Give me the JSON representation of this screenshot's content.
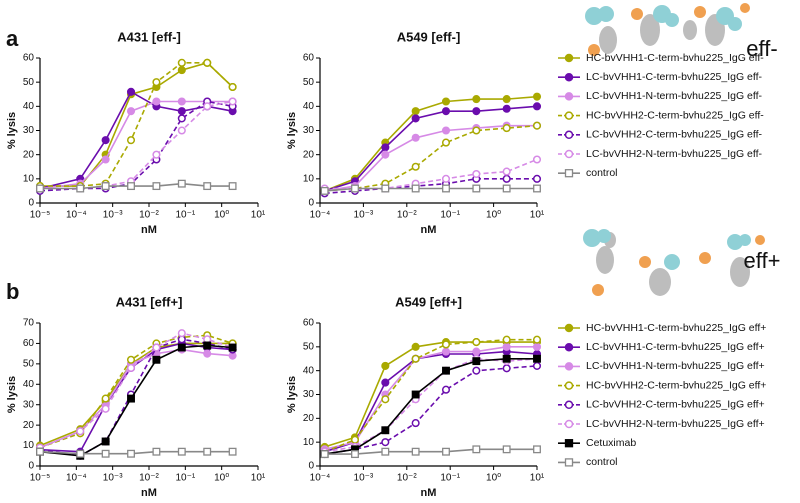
{
  "chart_data": [
    {
      "type": "line",
      "panel_label": "a",
      "title": "A431 [eff-]",
      "xlabel": "nM",
      "ylabel": "% lysis",
      "xscale": "log",
      "x": [
        1e-05,
        0.000128,
        0.00064,
        0.0032,
        0.016,
        0.08,
        0.4,
        2
      ],
      "xlim": [
        1e-05,
        10
      ],
      "xticks": [
        {
          "value": 1e-05,
          "label": "10⁻⁵"
        },
        {
          "value": 0.0001,
          "label": "10⁻⁴"
        },
        {
          "value": 0.001,
          "label": "10⁻³"
        },
        {
          "value": 0.01,
          "label": "10⁻²"
        },
        {
          "value": 0.1,
          "label": "10⁻¹"
        },
        {
          "value": 1,
          "label": "10⁰"
        },
        {
          "value": 10,
          "label": "10¹"
        }
      ],
      "ylim": [
        0,
        60
      ],
      "yticks": [
        0,
        10,
        20,
        30,
        40,
        50,
        60
      ],
      "series": [
        {
          "color": "#a9a900",
          "marker": "circle",
          "filled": true,
          "dashed": false,
          "values": [
            7,
            7,
            20,
            45,
            48,
            55,
            58,
            48
          ]
        },
        {
          "color": "#6a0dad",
          "marker": "circle",
          "filled": true,
          "dashed": false,
          "values": [
            6,
            10,
            26,
            46,
            40,
            38,
            40,
            38
          ]
        },
        {
          "color": "#d68ae6",
          "marker": "circle",
          "filled": true,
          "dashed": false,
          "values": [
            6,
            8,
            18,
            38,
            42,
            42,
            42,
            42
          ]
        },
        {
          "color": "#a9a900",
          "marker": "circle",
          "filled": false,
          "dashed": true,
          "values": [
            7,
            7,
            8,
            26,
            50,
            58,
            58,
            48
          ]
        },
        {
          "color": "#6a0dad",
          "marker": "circle",
          "filled": false,
          "dashed": true,
          "values": [
            5,
            6,
            6,
            8,
            18,
            35,
            42,
            40
          ]
        },
        {
          "color": "#d68ae6",
          "marker": "circle",
          "filled": false,
          "dashed": true,
          "values": [
            6,
            6,
            7,
            9,
            20,
            30,
            40,
            42
          ]
        },
        {
          "color": "#888888",
          "marker": "square",
          "filled": false,
          "dashed": false,
          "values": [
            6,
            6,
            7,
            7,
            7,
            8,
            7,
            7
          ]
        }
      ]
    },
    {
      "type": "line",
      "legend_title": "eff-",
      "title": "A549 [eff-]",
      "xlabel": "nM",
      "ylabel": "% lysis",
      "xscale": "log",
      "x": [
        0.000128,
        0.00064,
        0.0032,
        0.016,
        0.08,
        0.4,
        2,
        10
      ],
      "xlim": [
        0.0001,
        10
      ],
      "xticks": [
        {
          "value": 0.0001,
          "label": "10⁻⁴"
        },
        {
          "value": 0.001,
          "label": "10⁻³"
        },
        {
          "value": 0.01,
          "label": "10⁻²"
        },
        {
          "value": 0.1,
          "label": "10⁻¹"
        },
        {
          "value": 1,
          "label": "10⁰"
        },
        {
          "value": 10,
          "label": "10¹"
        }
      ],
      "ylim": [
        0,
        60
      ],
      "yticks": [
        0,
        10,
        20,
        30,
        40,
        50,
        60
      ],
      "series": [
        {
          "name": "HC-bvVHH1-C-term-bvhu225_IgG eff-",
          "color": "#a9a900",
          "marker": "circle",
          "filled": true,
          "dashed": false,
          "values": [
            5,
            10,
            25,
            38,
            42,
            43,
            43,
            44
          ]
        },
        {
          "name": "LC-bvVHH1-C-term-bvhu225_IgG eff-",
          "color": "#6a0dad",
          "marker": "circle",
          "filled": true,
          "dashed": false,
          "values": [
            5,
            9,
            23,
            35,
            38,
            38,
            39,
            40
          ]
        },
        {
          "name": "LC-bvVHH1-N-term-bvhu225_IgG eff-",
          "color": "#d68ae6",
          "marker": "circle",
          "filled": true,
          "dashed": false,
          "values": [
            5,
            7,
            20,
            27,
            30,
            31,
            32,
            32
          ]
        },
        {
          "name": "HC-bvVHH2-C-term-bvhu225_IgG eff-",
          "color": "#a9a900",
          "marker": "circle",
          "filled": false,
          "dashed": true,
          "values": [
            5,
            6,
            8,
            15,
            25,
            30,
            31,
            32
          ]
        },
        {
          "name": "LC-bvVHH2-C-term-bvhu225_IgG eff-",
          "color": "#6a0dad",
          "marker": "circle",
          "filled": false,
          "dashed": true,
          "values": [
            4,
            5,
            6,
            7,
            8,
            10,
            10,
            10
          ]
        },
        {
          "name": "LC-bvVHH2-N-term-bvhu225_IgG eff-",
          "color": "#d68ae6",
          "marker": "circle",
          "filled": false,
          "dashed": true,
          "values": [
            6,
            6,
            6,
            8,
            10,
            12,
            13,
            18
          ]
        },
        {
          "name": "control",
          "color": "#888888",
          "marker": "square",
          "filled": false,
          "dashed": false,
          "values": [
            5,
            6,
            6,
            6,
            6,
            6,
            6,
            6
          ]
        }
      ]
    },
    {
      "type": "line",
      "panel_label": "b",
      "title": "A431 [eff+]",
      "xlabel": "nM",
      "ylabel": "% lysis",
      "xscale": "log",
      "x": [
        1e-05,
        0.000128,
        0.00064,
        0.0032,
        0.016,
        0.08,
        0.4,
        2
      ],
      "xlim": [
        1e-05,
        10
      ],
      "xticks": [
        {
          "value": 1e-05,
          "label": "10⁻⁵"
        },
        {
          "value": 0.0001,
          "label": "10⁻⁴"
        },
        {
          "value": 0.001,
          "label": "10⁻³"
        },
        {
          "value": 0.01,
          "label": "10⁻²"
        },
        {
          "value": 0.1,
          "label": "10⁻¹"
        },
        {
          "value": 1,
          "label": "10⁰"
        },
        {
          "value": 10,
          "label": "10¹"
        }
      ],
      "ylim": [
        0,
        70
      ],
      "yticks": [
        0,
        10,
        20,
        30,
        40,
        50,
        60,
        70
      ],
      "series": [
        {
          "color": "#a9a900",
          "marker": "circle",
          "filled": true,
          "dashed": false,
          "values": [
            10,
            18,
            32,
            50,
            58,
            60,
            60,
            60
          ]
        },
        {
          "color": "#6a0dad",
          "marker": "circle",
          "filled": true,
          "dashed": false,
          "values": [
            8,
            7,
            30,
            48,
            57,
            60,
            58,
            57
          ]
        },
        {
          "color": "#d68ae6",
          "marker": "circle",
          "filled": true,
          "dashed": false,
          "values": [
            9,
            17,
            30,
            50,
            55,
            57,
            55,
            54
          ]
        },
        {
          "color": "#a9a900",
          "marker": "circle",
          "filled": false,
          "dashed": true,
          "values": [
            9,
            16,
            33,
            52,
            60,
            63,
            64,
            60
          ]
        },
        {
          "color": "#6a0dad",
          "marker": "circle",
          "filled": false,
          "dashed": true,
          "values": [
            8,
            5,
            12,
            35,
            58,
            62,
            60,
            57
          ]
        },
        {
          "color": "#d68ae6",
          "marker": "circle",
          "filled": false,
          "dashed": true,
          "values": [
            9,
            17,
            28,
            48,
            58,
            65,
            62,
            58
          ]
        },
        {
          "color": "#000000",
          "marker": "square",
          "filled": true,
          "dashed": false,
          "values": [
            7,
            5,
            12,
            33,
            52,
            58,
            59,
            58
          ]
        },
        {
          "color": "#888888",
          "marker": "square",
          "filled": false,
          "dashed": false,
          "values": [
            7,
            6,
            6,
            6,
            7,
            7,
            7,
            7
          ]
        }
      ]
    },
    {
      "type": "line",
      "legend_title": "eff+",
      "title": "A549 [eff+]",
      "xlabel": "nM",
      "ylabel": "% lysis",
      "xscale": "log",
      "x": [
        0.000128,
        0.00064,
        0.0032,
        0.016,
        0.08,
        0.4,
        2,
        10
      ],
      "xlim": [
        0.0001,
        10
      ],
      "xticks": [
        {
          "value": 0.0001,
          "label": "10⁻⁴"
        },
        {
          "value": 0.001,
          "label": "10⁻³"
        },
        {
          "value": 0.01,
          "label": "10⁻²"
        },
        {
          "value": 0.1,
          "label": "10⁻¹"
        },
        {
          "value": 1,
          "label": "10⁰"
        },
        {
          "value": 10,
          "label": "10¹"
        }
      ],
      "ylim": [
        0,
        60
      ],
      "yticks": [
        0,
        10,
        20,
        30,
        40,
        50,
        60
      ],
      "series": [
        {
          "name": "HC-bvVHH1-C-term-bvhu225_IgG eff+",
          "color": "#a9a900",
          "marker": "circle",
          "filled": true,
          "dashed": false,
          "values": [
            8,
            12,
            42,
            50,
            52,
            52,
            52,
            52
          ]
        },
        {
          "name": "LC-bvVHH1-C-term-bvhu225_IgG eff+",
          "color": "#6a0dad",
          "marker": "circle",
          "filled": true,
          "dashed": false,
          "values": [
            6,
            10,
            35,
            45,
            47,
            47,
            48,
            47
          ]
        },
        {
          "name": "LC-bvVHH1-N-term-bvhu225_IgG eff+",
          "color": "#d68ae6",
          "marker": "circle",
          "filled": true,
          "dashed": false,
          "values": [
            7,
            10,
            30,
            45,
            48,
            48,
            50,
            50
          ]
        },
        {
          "name": "HC-bvVHH2-C-term-bvhu225_IgG eff+",
          "color": "#a9a900",
          "marker": "circle",
          "filled": false,
          "dashed": true,
          "values": [
            6,
            11,
            28,
            45,
            51,
            52,
            53,
            53
          ]
        },
        {
          "name": "LC-bvVHH2-C-term-bvhu225_IgG eff+",
          "color": "#6a0dad",
          "marker": "circle",
          "filled": false,
          "dashed": true,
          "values": [
            5,
            7,
            10,
            18,
            32,
            40,
            41,
            42
          ]
        },
        {
          "name": "LC-bvVHH2-N-term-bvhu225_IgG eff+",
          "color": "#d68ae6",
          "marker": "circle",
          "filled": false,
          "dashed": true,
          "values": [
            6,
            8,
            15,
            28,
            40,
            45,
            44,
            45
          ]
        },
        {
          "name": "Cetuximab",
          "color": "#000000",
          "marker": "square",
          "filled": true,
          "dashed": false,
          "values": [
            5,
            7,
            15,
            30,
            40,
            44,
            45,
            45
          ]
        },
        {
          "name": "control",
          "color": "#888888",
          "marker": "square",
          "filled": false,
          "dashed": false,
          "values": [
            5,
            5,
            6,
            6,
            6,
            7,
            7,
            7
          ]
        }
      ]
    }
  ]
}
